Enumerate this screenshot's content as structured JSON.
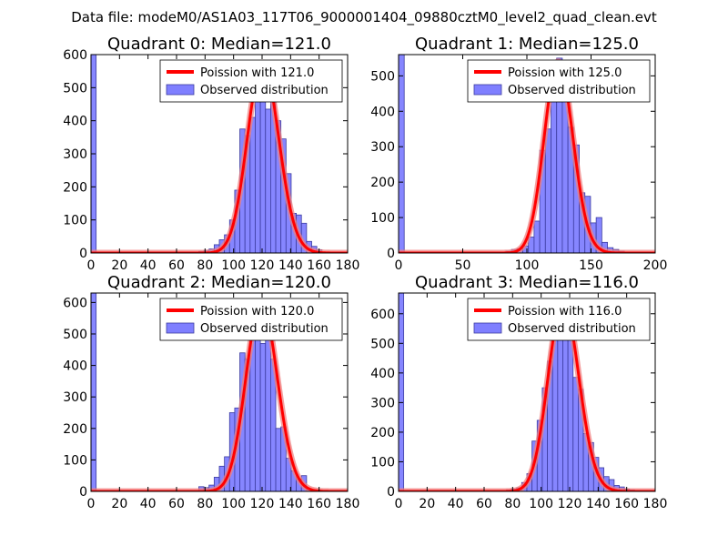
{
  "figure": {
    "suptitle": "Data file: modeM0/AS1A03_117T06_9000001404_09880cztM0_level2_quad_clean.evt"
  },
  "colors": {
    "bar_fill": "#7f7fff",
    "bar_edge": "#3c3ca0",
    "curve": "#ff0000",
    "curve_halo": "#f08080"
  },
  "chart_data": [
    {
      "type": "bar",
      "title": "Quadrant 0: Median=121.0",
      "xlabel": "",
      "ylabel": "",
      "xlim": [
        0,
        180
      ],
      "ylim": [
        0,
        600
      ],
      "xticks": [
        0,
        20,
        40,
        60,
        80,
        100,
        120,
        140,
        160,
        180
      ],
      "yticks": [
        0,
        100,
        200,
        300,
        400,
        500,
        600
      ],
      "bin_width": 3.6,
      "grid": false,
      "legend": {
        "position": "top-right",
        "entries": [
          "Poission with 121.0",
          "Observed distribution"
        ]
      },
      "bars": [
        [
          0,
          600
        ],
        [
          75.6,
          5
        ],
        [
          79.2,
          8
        ],
        [
          82.8,
          12
        ],
        [
          86.4,
          25
        ],
        [
          90,
          40
        ],
        [
          93.6,
          55
        ],
        [
          97.2,
          100
        ],
        [
          100.8,
          190
        ],
        [
          104.4,
          375
        ],
        [
          108,
          355
        ],
        [
          111.6,
          410
        ],
        [
          115.2,
          500
        ],
        [
          118.8,
          575
        ],
        [
          122.4,
          435
        ],
        [
          126,
          520
        ],
        [
          129.6,
          400
        ],
        [
          133.2,
          345
        ],
        [
          136.8,
          240
        ],
        [
          140.4,
          120
        ],
        [
          144,
          115
        ],
        [
          147.6,
          90
        ],
        [
          151.2,
          35
        ],
        [
          154.8,
          20
        ],
        [
          158.4,
          10
        ],
        [
          162,
          3
        ]
      ],
      "poisson_lambda": 121.0,
      "poisson_peak": 575
    },
    {
      "type": "bar",
      "title": "Quadrant 1: Median=125.0",
      "xlabel": "",
      "ylabel": "",
      "xlim": [
        0,
        200
      ],
      "ylim": [
        0,
        560
      ],
      "xticks": [
        0,
        50,
        100,
        150,
        200
      ],
      "yticks": [
        0,
        100,
        200,
        300,
        400,
        500
      ],
      "bin_width": 4.4,
      "grid": false,
      "legend": {
        "position": "top-right",
        "entries": [
          "Poission with 125.0",
          "Observed distribution"
        ]
      },
      "bars": [
        [
          0,
          560
        ],
        [
          83.6,
          5
        ],
        [
          88,
          10
        ],
        [
          92.4,
          12
        ],
        [
          96.8,
          20
        ],
        [
          101.2,
          45
        ],
        [
          105.6,
          90
        ],
        [
          110,
          290
        ],
        [
          114.4,
          350
        ],
        [
          118.8,
          440
        ],
        [
          123.2,
          550
        ],
        [
          127.6,
          440
        ],
        [
          132,
          355
        ],
        [
          136.4,
          305
        ],
        [
          140.8,
          170
        ],
        [
          145.2,
          160
        ],
        [
          149.6,
          85
        ],
        [
          154,
          100
        ],
        [
          158.4,
          30
        ],
        [
          162.8,
          15
        ],
        [
          167.2,
          10
        ],
        [
          171.6,
          5
        ]
      ],
      "poisson_lambda": 125.0,
      "poisson_peak": 540
    },
    {
      "type": "bar",
      "title": "Quadrant 2: Median=120.0",
      "xlabel": "",
      "ylabel": "",
      "xlim": [
        0,
        180
      ],
      "ylim": [
        0,
        630
      ],
      "xticks": [
        0,
        20,
        40,
        60,
        80,
        100,
        120,
        140,
        160,
        180
      ],
      "yticks": [
        0,
        100,
        200,
        300,
        400,
        500,
        600
      ],
      "bin_width": 3.6,
      "grid": false,
      "legend": {
        "position": "top-right",
        "entries": [
          "Poission with 120.0",
          "Observed distribution"
        ]
      },
      "bars": [
        [
          0,
          630
        ],
        [
          75.6,
          15
        ],
        [
          79.2,
          12
        ],
        [
          82.8,
          20
        ],
        [
          86.4,
          45
        ],
        [
          90,
          80
        ],
        [
          93.6,
          110
        ],
        [
          97.2,
          250
        ],
        [
          100.8,
          265
        ],
        [
          104.4,
          440
        ],
        [
          108,
          420
        ],
        [
          111.6,
          525
        ],
        [
          115.2,
          580
        ],
        [
          118.8,
          470
        ],
        [
          122.4,
          500
        ],
        [
          126,
          420
        ],
        [
          129.6,
          200
        ],
        [
          133.2,
          205
        ],
        [
          136.8,
          105
        ],
        [
          140.4,
          65
        ],
        [
          144,
          40
        ],
        [
          147.6,
          50
        ],
        [
          151.2,
          8
        ],
        [
          154.8,
          5
        ]
      ],
      "poisson_lambda": 120.0,
      "poisson_peak": 600
    },
    {
      "type": "bar",
      "title": "Quadrant 3: Median=116.0",
      "xlabel": "",
      "ylabel": "",
      "xlim": [
        0,
        180
      ],
      "ylim": [
        0,
        670
      ],
      "xticks": [
        0,
        20,
        40,
        60,
        80,
        100,
        120,
        140,
        160,
        180
      ],
      "yticks": [
        0,
        100,
        200,
        300,
        400,
        500,
        600
      ],
      "bin_width": 3.6,
      "grid": false,
      "legend": {
        "position": "top-right",
        "entries": [
          "Poission with 116.0",
          "Observed distribution"
        ]
      },
      "bars": [
        [
          0,
          670
        ],
        [
          75.6,
          5
        ],
        [
          79.2,
          8
        ],
        [
          82.8,
          12
        ],
        [
          86.4,
          30
        ],
        [
          90,
          60
        ],
        [
          93.6,
          170
        ],
        [
          97.2,
          240
        ],
        [
          100.8,
          350
        ],
        [
          104.4,
          440
        ],
        [
          108,
          540
        ],
        [
          111.6,
          640
        ],
        [
          115.2,
          560
        ],
        [
          118.8,
          520
        ],
        [
          122.4,
          385
        ],
        [
          126,
          345
        ],
        [
          129.6,
          195
        ],
        [
          133.2,
          165
        ],
        [
          136.8,
          115
        ],
        [
          140.4,
          80
        ],
        [
          144,
          50
        ],
        [
          147.6,
          40
        ],
        [
          151.2,
          20
        ],
        [
          154.8,
          15
        ],
        [
          158.4,
          8
        ],
        [
          162,
          5
        ]
      ],
      "poisson_lambda": 116.0,
      "poisson_peak": 640
    }
  ]
}
